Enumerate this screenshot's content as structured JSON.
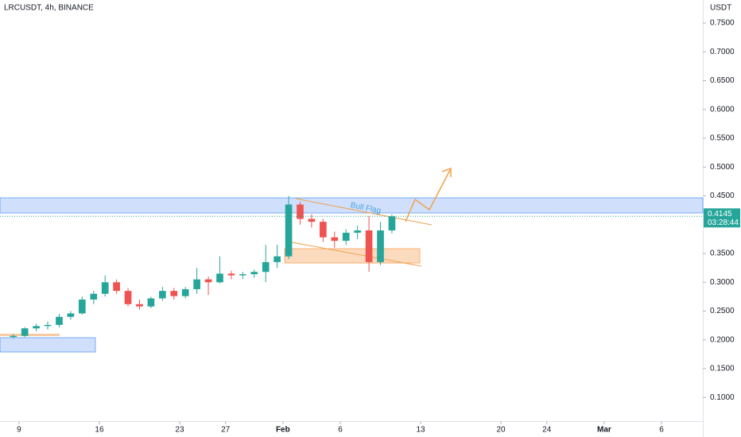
{
  "header": {
    "symbol": "LRCUSDT, 4h, BINANCE",
    "currency": "USDT"
  },
  "chart_data": {
    "type": "candlestick",
    "annotation": "Bull Flag",
    "last_price": 0.4145,
    "countdown": "03:28:44",
    "up_color": "#26a69a",
    "down_color": "#ef5350",
    "xlim": [
      7.34,
      68.6
    ],
    "ylim": [
      0.059,
      0.79
    ],
    "xticks": [
      {
        "value": 9,
        "label": "9"
      },
      {
        "value": 16,
        "label": "16"
      },
      {
        "value": 23,
        "label": "23"
      },
      {
        "value": 27,
        "label": "27"
      },
      {
        "value": 32,
        "label": "Feb"
      },
      {
        "value": 37,
        "label": "6"
      },
      {
        "value": 44,
        "label": "13"
      },
      {
        "value": 51,
        "label": "20"
      },
      {
        "value": 55,
        "label": "24"
      },
      {
        "value": 60,
        "label": "Mar"
      },
      {
        "value": 65,
        "label": "6"
      }
    ],
    "yticks": [
      {
        "value": 0.75,
        "label": "0.7500"
      },
      {
        "value": 0.7,
        "label": "0.7000"
      },
      {
        "value": 0.65,
        "label": "0.6500"
      },
      {
        "value": 0.6,
        "label": "0.6000"
      },
      {
        "value": 0.55,
        "label": "0.5500"
      },
      {
        "value": 0.5,
        "label": "0.5000"
      },
      {
        "value": 0.45,
        "label": "0.4500"
      },
      {
        "value": 0.35,
        "label": "0.3500"
      },
      {
        "value": 0.3,
        "label": "0.3000"
      },
      {
        "value": 0.25,
        "label": "0.2500"
      },
      {
        "value": 0.2,
        "label": "0.2000"
      },
      {
        "value": 0.15,
        "label": "0.1500"
      },
      {
        "value": 0.1,
        "label": "0.1000"
      }
    ],
    "x": [
      8.5,
      9.5,
      10.5,
      11.5,
      12.5,
      13.5,
      14.5,
      15.5,
      16.5,
      17.5,
      18.5,
      19.5,
      20.5,
      21.5,
      22.5,
      23.5,
      24.5,
      25.5,
      26.5,
      27.5,
      28.5,
      29.5,
      30.5,
      31.5,
      32.5,
      33.5,
      34.5,
      35.5,
      36.5,
      37.5,
      38.5,
      39.5,
      40.5,
      41.5
    ],
    "open": [
      0.205,
      0.207,
      0.22,
      0.224,
      0.226,
      0.24,
      0.246,
      0.27,
      0.28,
      0.3,
      0.285,
      0.262,
      0.258,
      0.272,
      0.285,
      0.276,
      0.288,
      0.305,
      0.3,
      0.315,
      0.312,
      0.314,
      0.318,
      0.335,
      0.345,
      0.435,
      0.41,
      0.405,
      0.378,
      0.372,
      0.386,
      0.39,
      0.335,
      0.39
    ],
    "high": [
      0.21,
      0.222,
      0.228,
      0.232,
      0.245,
      0.25,
      0.275,
      0.285,
      0.312,
      0.305,
      0.29,
      0.27,
      0.275,
      0.292,
      0.29,
      0.292,
      0.325,
      0.31,
      0.345,
      0.32,
      0.318,
      0.322,
      0.365,
      0.365,
      0.45,
      0.44,
      0.418,
      0.41,
      0.388,
      0.392,
      0.398,
      0.415,
      0.405,
      0.418
    ],
    "low": [
      0.202,
      0.205,
      0.215,
      0.218,
      0.222,
      0.235,
      0.244,
      0.262,
      0.275,
      0.28,
      0.258,
      0.252,
      0.255,
      0.268,
      0.27,
      0.272,
      0.28,
      0.278,
      0.298,
      0.305,
      0.306,
      0.308,
      0.3,
      0.325,
      0.34,
      0.4,
      0.395,
      0.37,
      0.36,
      0.365,
      0.375,
      0.318,
      0.33,
      0.385
    ],
    "close": [
      0.207,
      0.22,
      0.224,
      0.226,
      0.24,
      0.246,
      0.27,
      0.28,
      0.3,
      0.285,
      0.262,
      0.258,
      0.272,
      0.285,
      0.276,
      0.288,
      0.305,
      0.3,
      0.315,
      0.312,
      0.314,
      0.318,
      0.335,
      0.345,
      0.435,
      0.41,
      0.405,
      0.378,
      0.372,
      0.386,
      0.39,
      0.335,
      0.39,
      0.4145
    ]
  }
}
